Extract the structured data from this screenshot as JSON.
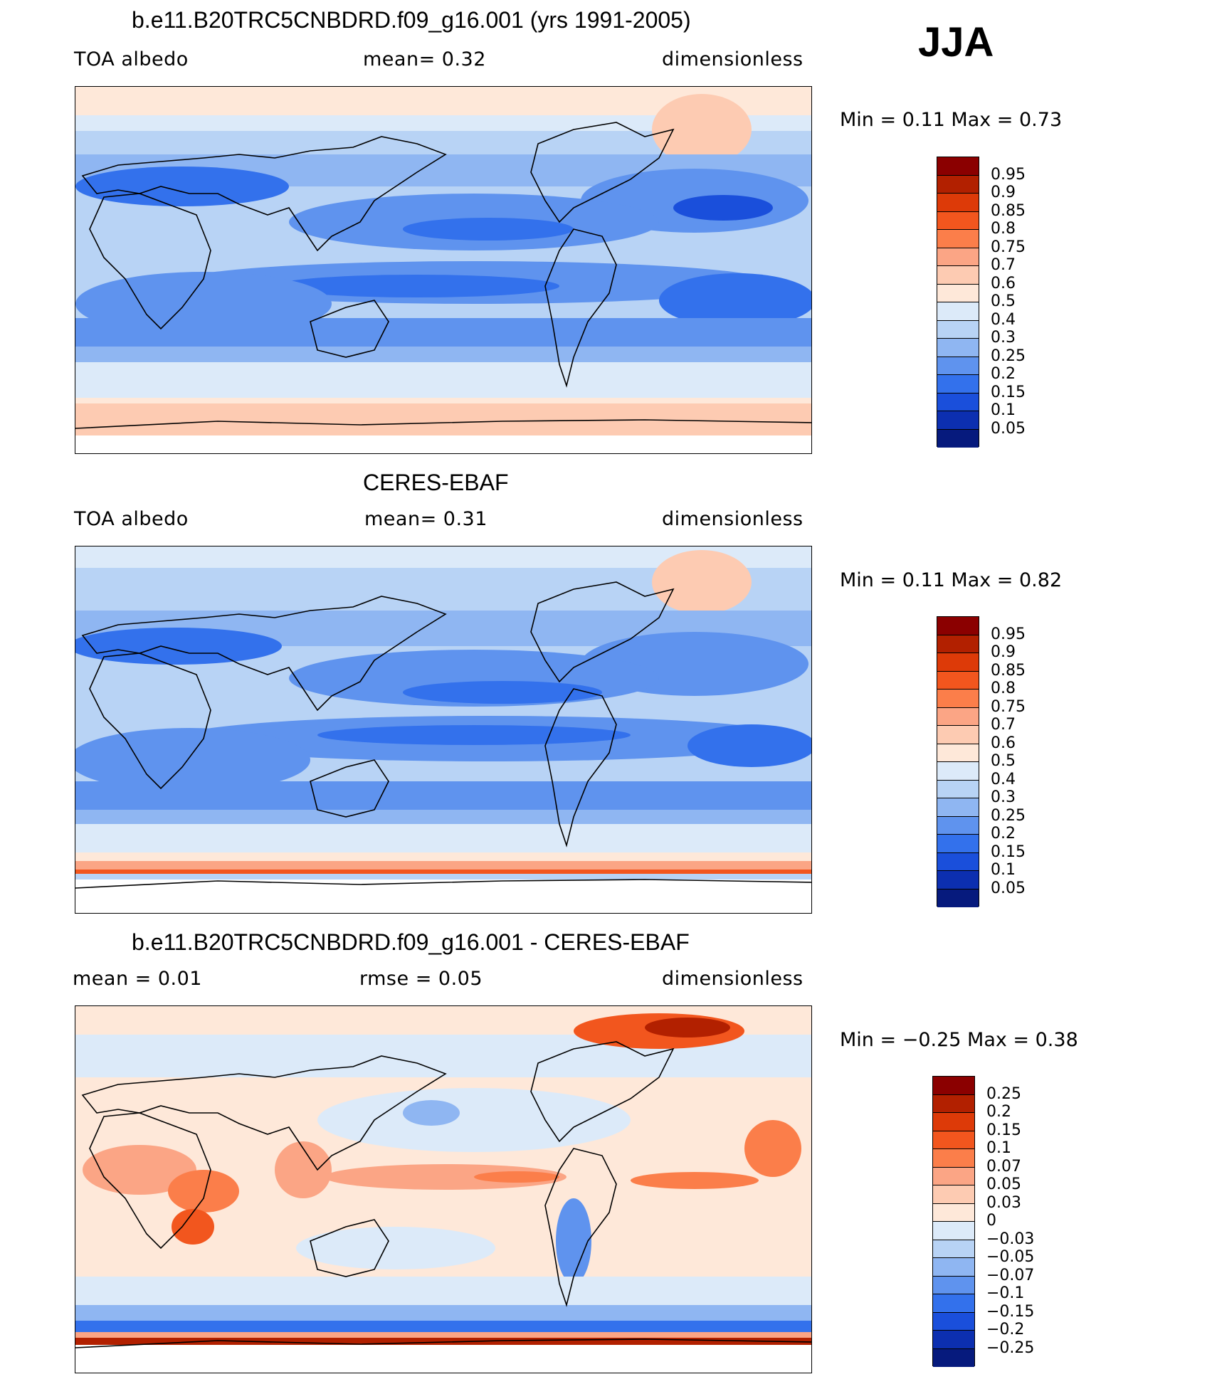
{
  "season": "JJA",
  "panels": [
    {
      "id": "model",
      "title": "b.e11.B20TRC5CNBDRD.f09_g16.001 (yrs 1991-2005)",
      "left_label": "TOA  albedo",
      "center_label": "mean=    0.32",
      "right_label": "dimensionless",
      "minmax": "Min  =      0.11  Max  =      0.73",
      "colorbar": {
        "labels": [
          "0.95",
          "0.9",
          "0.85",
          "0.8",
          "0.75",
          "0.7",
          "0.6",
          "0.5",
          "0.4",
          "0.3",
          "0.25",
          "0.2",
          "0.15",
          "0.1",
          "0.05"
        ],
        "colors": [
          "#8b0000",
          "#b22000",
          "#dd3a08",
          "#f2561e",
          "#fb7e4a",
          "#fba585",
          "#fdcbb2",
          "#fee8d9",
          "#dceaf9",
          "#b8d3f5",
          "#8fb6f2",
          "#5f93ee",
          "#3371ec",
          "#1a4fdb",
          "#0c2fb0",
          "#061a7d"
        ]
      }
    },
    {
      "id": "obs",
      "title": "CERES-EBAF",
      "left_label": "TOA  albedo",
      "center_label": "mean=    0.31",
      "right_label": "dimensionless",
      "minmax": "Min  =      0.11  Max  =      0.82",
      "colorbar": {
        "labels": [
          "0.95",
          "0.9",
          "0.85",
          "0.8",
          "0.75",
          "0.7",
          "0.6",
          "0.5",
          "0.4",
          "0.3",
          "0.25",
          "0.2",
          "0.15",
          "0.1",
          "0.05"
        ],
        "colors": [
          "#8b0000",
          "#b22000",
          "#dd3a08",
          "#f2561e",
          "#fb7e4a",
          "#fba585",
          "#fdcbb2",
          "#fee8d9",
          "#dceaf9",
          "#b8d3f5",
          "#8fb6f2",
          "#5f93ee",
          "#3371ec",
          "#1a4fdb",
          "#0c2fb0",
          "#061a7d"
        ]
      }
    },
    {
      "id": "diff",
      "title": "b.e11.B20TRC5CNBDRD.f09_g16.001 - CERES-EBAF",
      "left_label": "mean  =     0.01",
      "center_label": "rmse  =     0.05",
      "right_label": "dimensionless",
      "minmax": "Min  =   −0.25  Max  =     0.38",
      "colorbar": {
        "labels": [
          "0.25",
          "0.2",
          "0.15",
          "0.1",
          "0.07",
          "0.05",
          "0.03",
          "0",
          "−0.03",
          "−0.05",
          "−0.07",
          "−0.1",
          "−0.15",
          "−0.2",
          "−0.25"
        ],
        "colors": [
          "#8b0000",
          "#b22000",
          "#dd3a08",
          "#f2561e",
          "#fb7e4a",
          "#fba585",
          "#fdcbb2",
          "#fee8d9",
          "#dceaf9",
          "#b8d3f5",
          "#8fb6f2",
          "#5f93ee",
          "#3371ec",
          "#1a4fdb",
          "#0c2fb0",
          "#061a7d"
        ]
      }
    }
  ]
}
